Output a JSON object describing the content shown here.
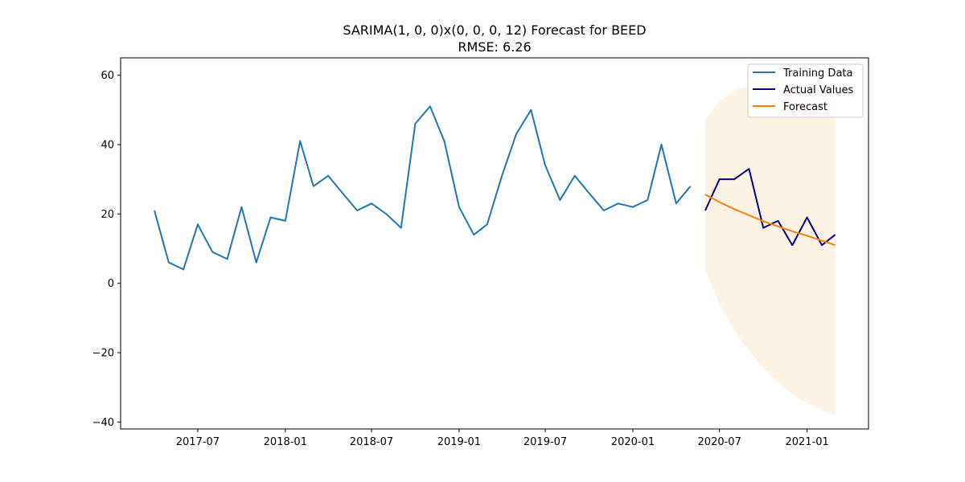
{
  "chart_data": {
    "type": "line",
    "title": "SARIMA(1, 0, 0)x(0, 0, 0, 12) Forecast for BEED",
    "subtitle": "RMSE: 6.26",
    "xlabel": "",
    "ylabel": "",
    "x_axis": {
      "type": "date",
      "range": [
        "2017-01-20",
        "2021-05-10"
      ],
      "ticks": [
        "2017-07-01",
        "2018-01-01",
        "2018-07-01",
        "2019-01-01",
        "2019-07-01",
        "2020-01-01",
        "2020-07-01",
        "2021-01-01"
      ],
      "tick_labels": [
        "2017-07",
        "2018-01",
        "2018-07",
        "2019-01",
        "2019-07",
        "2020-01",
        "2020-07",
        "2021-01"
      ]
    },
    "y_axis": {
      "range": [
        -42,
        65
      ],
      "ticks": [
        -40,
        -20,
        0,
        20,
        40,
        60
      ],
      "tick_labels": [
        "−40",
        "−20",
        "0",
        "20",
        "40",
        "60"
      ]
    },
    "grid": false,
    "legend_position": "top-right",
    "series": [
      {
        "name": "Training Data",
        "color": "#1f77b4",
        "points": [
          [
            "2017-04-01",
            21
          ],
          [
            "2017-05-01",
            6
          ],
          [
            "2017-06-01",
            4
          ],
          [
            "2017-07-01",
            17
          ],
          [
            "2017-08-01",
            9
          ],
          [
            "2017-09-01",
            7
          ],
          [
            "2017-10-01",
            22
          ],
          [
            "2017-11-01",
            6
          ],
          [
            "2017-12-01",
            19
          ],
          [
            "2018-01-01",
            18
          ],
          [
            "2018-02-01",
            41
          ],
          [
            "2018-03-01",
            28
          ],
          [
            "2018-04-01",
            31
          ],
          [
            "2018-05-01",
            26
          ],
          [
            "2018-06-01",
            21
          ],
          [
            "2018-07-01",
            23
          ],
          [
            "2018-08-01",
            20
          ],
          [
            "2018-09-01",
            16
          ],
          [
            "2018-10-01",
            46
          ],
          [
            "2018-11-01",
            51
          ],
          [
            "2018-12-01",
            41
          ],
          [
            "2019-01-01",
            22
          ],
          [
            "2019-02-01",
            14
          ],
          [
            "2019-03-01",
            17
          ],
          [
            "2019-04-01",
            31
          ],
          [
            "2019-05-01",
            43
          ],
          [
            "2019-06-01",
            50
          ],
          [
            "2019-07-01",
            34
          ],
          [
            "2019-08-01",
            24
          ],
          [
            "2019-09-01",
            31
          ],
          [
            "2019-10-01",
            26
          ],
          [
            "2019-11-01",
            21
          ],
          [
            "2019-12-01",
            23
          ],
          [
            "2020-01-01",
            22
          ],
          [
            "2020-02-01",
            24
          ],
          [
            "2020-03-01",
            40
          ],
          [
            "2020-04-01",
            23
          ],
          [
            "2020-05-01",
            28
          ]
        ]
      },
      {
        "name": "Actual Values",
        "color": "#000080",
        "points": [
          [
            "2020-06-01",
            21
          ],
          [
            "2020-07-01",
            30
          ],
          [
            "2020-08-01",
            30
          ],
          [
            "2020-09-01",
            33
          ],
          [
            "2020-10-01",
            16
          ],
          [
            "2020-11-01",
            18
          ],
          [
            "2020-12-01",
            11
          ],
          [
            "2021-01-01",
            19
          ],
          [
            "2021-02-01",
            11
          ],
          [
            "2021-03-01",
            14
          ]
        ]
      },
      {
        "name": "Forecast",
        "color": "#ff7f0e",
        "points": [
          [
            "2020-06-01",
            25.6
          ],
          [
            "2020-07-01",
            23.4
          ],
          [
            "2020-08-01",
            21.4
          ],
          [
            "2020-09-01",
            19.6
          ],
          [
            "2020-10-01",
            17.9
          ],
          [
            "2020-11-01",
            16.4
          ],
          [
            "2020-12-01",
            15.0
          ],
          [
            "2021-01-01",
            13.7
          ],
          [
            "2021-02-01",
            12.3
          ],
          [
            "2021-03-01",
            11.0
          ]
        ]
      }
    ],
    "confidence_band": {
      "color": "#fdf3e4",
      "upper": [
        [
          "2020-06-01",
          47
        ],
        [
          "2020-07-01",
          52.5
        ],
        [
          "2020-08-01",
          55.5
        ],
        [
          "2020-09-01",
          57
        ],
        [
          "2020-10-01",
          58
        ],
        [
          "2020-11-01",
          58.5
        ],
        [
          "2020-12-01",
          58.5
        ],
        [
          "2021-01-01",
          58.5
        ],
        [
          "2021-02-01",
          58.5
        ],
        [
          "2021-03-01",
          58.5
        ]
      ],
      "lower": [
        [
          "2020-06-01",
          4
        ],
        [
          "2020-07-01",
          -6
        ],
        [
          "2020-08-01",
          -13.5
        ],
        [
          "2020-09-01",
          -19.5
        ],
        [
          "2020-10-01",
          -24.5
        ],
        [
          "2020-11-01",
          -28.5
        ],
        [
          "2020-12-01",
          -32
        ],
        [
          "2021-01-01",
          -34.5
        ],
        [
          "2021-02-01",
          -36.5
        ],
        [
          "2021-03-01",
          -38
        ]
      ]
    }
  }
}
